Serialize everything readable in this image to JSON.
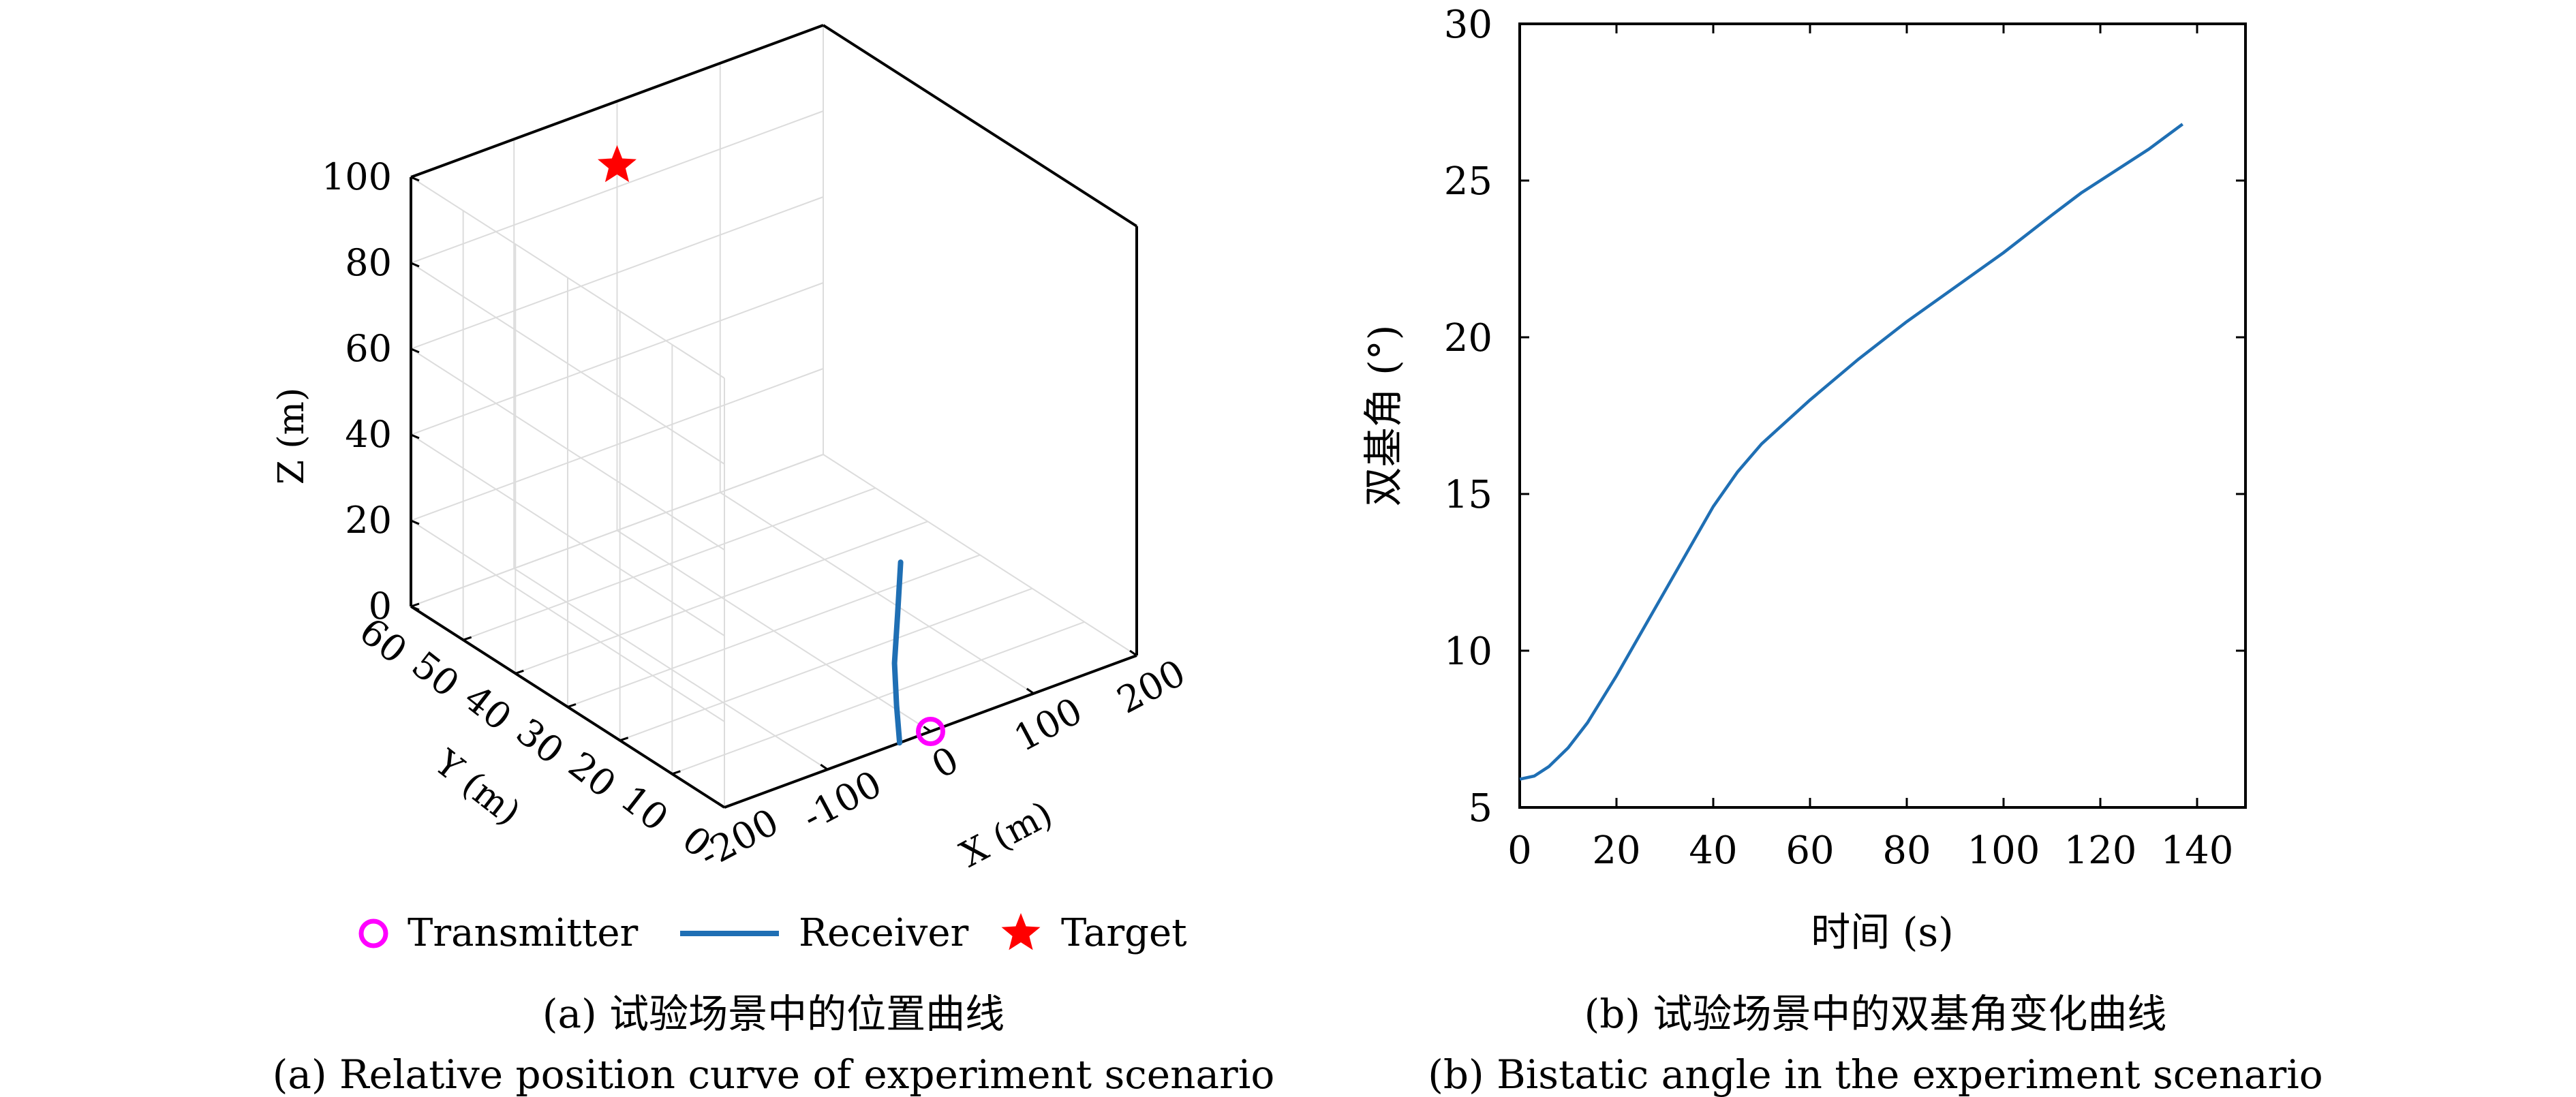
{
  "chart_data": [
    {
      "type": "scatter3d",
      "xlabel": "X (m)",
      "ylabel": "Y (m)",
      "zlabel": "Z (m)",
      "xlim": [
        -200,
        200
      ],
      "ylim": [
        0,
        60
      ],
      "zlim": [
        0,
        100
      ],
      "xticks": [
        "-200",
        "-100",
        "0",
        "100",
        "200"
      ],
      "yticks": [
        "0",
        "10",
        "20",
        "30",
        "40",
        "50",
        "60"
      ],
      "zticks": [
        "0",
        "20",
        "40",
        "60",
        "80",
        "100"
      ],
      "grid": true,
      "legend_position": "bottom",
      "series": [
        {
          "name": "Transmitter",
          "marker": "circle",
          "color": "#ff00ff",
          "points": [
            {
              "x": 0,
              "y": 0,
              "z": 0
            }
          ]
        },
        {
          "name": "Receiver",
          "marker": "line",
          "color": "#1f6fb4",
          "points": [
            {
              "x": -30,
              "y": 0,
              "z": 0
            },
            {
              "x": -33,
              "y": 0,
              "z": 9
            },
            {
              "x": -35,
              "y": 0,
              "z": 19
            },
            {
              "x": -32,
              "y": 0,
              "z": 30
            },
            {
              "x": -29,
              "y": 0,
              "z": 42
            }
          ]
        },
        {
          "name": "Target",
          "marker": "star",
          "color": "#ff0000",
          "points": [
            {
              "x": 0,
              "y": 60,
              "z": 85
            }
          ]
        }
      ],
      "caption_cn": "(a) 试验场景中的位置曲线",
      "caption_en": "(a) Relative position curve of experiment scenario"
    },
    {
      "type": "line",
      "xlabel": "时间 (s)",
      "ylabel": "双基角 (°)",
      "xlim": [
        0,
        150
      ],
      "ylim": [
        5,
        30
      ],
      "xticks": [
        0,
        20,
        40,
        60,
        80,
        100,
        120,
        140
      ],
      "yticks": [
        5,
        10,
        15,
        20,
        25,
        30
      ],
      "grid": false,
      "series": [
        {
          "color": "#1f6fb4",
          "x": [
            0,
            3,
            6,
            10,
            14,
            20,
            30,
            40,
            45,
            50,
            60,
            70,
            80,
            90,
            100,
            110,
            116,
            120,
            130,
            137
          ],
          "y": [
            5.9,
            6.0,
            6.3,
            6.9,
            7.7,
            9.2,
            11.9,
            14.6,
            15.7,
            16.6,
            18.0,
            19.3,
            20.5,
            21.6,
            22.7,
            23.9,
            24.6,
            25.0,
            26.0,
            26.8
          ]
        }
      ],
      "caption_cn": "(b) 试验场景中的双基角变化曲线",
      "caption_en": "(b) Bistatic angle in the experiment scenario"
    }
  ],
  "legend": {
    "transmitter": "Transmitter",
    "receiver": "Receiver",
    "target": "Target"
  }
}
